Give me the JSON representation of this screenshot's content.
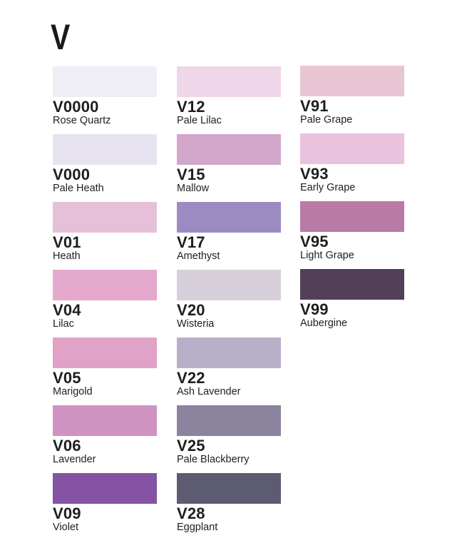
{
  "title": "V",
  "columns": [
    [
      {
        "code": "V0000",
        "name": "Rose Quartz",
        "color": "#efedf6"
      },
      {
        "code": "V000",
        "name": "Pale Heath",
        "color": "#e7e3f1"
      },
      {
        "code": "V01",
        "name": "Heath",
        "color": "#e6c0d9"
      },
      {
        "code": "V04",
        "name": "Lilac",
        "color": "#e4a9cc"
      },
      {
        "code": "V05",
        "name": "Marigold",
        "color": "#e1a2c8"
      },
      {
        "code": "V06",
        "name": "Lavender",
        "color": "#cf93c2"
      },
      {
        "code": "V09",
        "name": "Violet",
        "color": "#8553a3"
      }
    ],
    [
      {
        "code": "V12",
        "name": "Pale Lilac",
        "color": "#efd6e8"
      },
      {
        "code": "V15",
        "name": "Mallow",
        "color": "#d3a6cb"
      },
      {
        "code": "V17",
        "name": "Amethyst",
        "color": "#9c8bc3"
      },
      {
        "code": "V20",
        "name": "Wisteria",
        "color": "#d7d0da"
      },
      {
        "code": "V22",
        "name": "Ash Lavender",
        "color": "#b8b0c9"
      },
      {
        "code": "V25",
        "name": "Pale Blackberry",
        "color": "#8c839f"
      },
      {
        "code": "V28",
        "name": "Eggplant",
        "color": "#5d5b72"
      }
    ],
    [
      {
        "code": "V91",
        "name": "Pale Grape",
        "color": "#e8c5d2"
      },
      {
        "code": "V93",
        "name": "Early Grape",
        "color": "#e9c2de"
      },
      {
        "code": "V95",
        "name": "Light Grape",
        "color": "#b97aa6"
      },
      {
        "code": "V99",
        "name": "Aubergine",
        "color": "#523f58"
      }
    ]
  ]
}
